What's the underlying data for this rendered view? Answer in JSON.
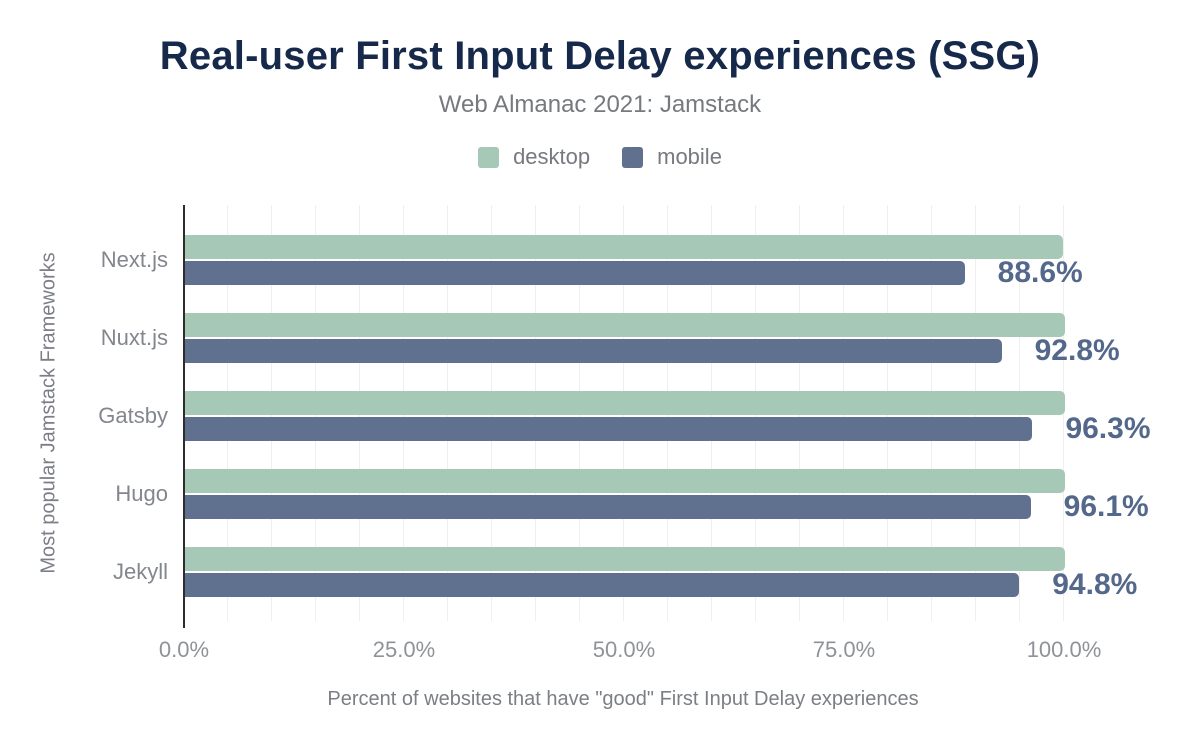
{
  "header": {
    "title": "Real-user First Input Delay experiences (SSG)",
    "subtitle": "Web Almanac 2021: Jamstack"
  },
  "legend": [
    {
      "label": "desktop",
      "color": "#a6c9b7"
    },
    {
      "label": "mobile",
      "color": "#5f718e"
    }
  ],
  "colors": {
    "title": "#16294a",
    "subtitle": "#76797e",
    "axis_line": "#2d2d2d",
    "gridline": "#efefef",
    "tick_label": "#8f9398",
    "category_label": "#83878d",
    "data_label": "#54688c",
    "desktop_bar": "#a6c9b7",
    "mobile_bar": "#5f718e"
  },
  "chart_data": {
    "type": "bar",
    "orientation": "horizontal",
    "title": "Real-user First Input Delay experiences (SSG)",
    "subtitle": "Web Almanac 2021: Jamstack",
    "categories": [
      "Next.js",
      "Nuxt.js",
      "Gatsby",
      "Hugo",
      "Jekyll"
    ],
    "series": [
      {
        "name": "desktop",
        "color": "#a6c9b7",
        "values": [
          99.8,
          100.0,
          100.0,
          100.0,
          100.0
        ]
      },
      {
        "name": "mobile",
        "color": "#5f718e",
        "values": [
          88.6,
          92.8,
          96.3,
          96.1,
          94.8
        ]
      }
    ],
    "data_labels": [
      "88.6%",
      "92.8%",
      "96.3%",
      "96.1%",
      "94.8%"
    ],
    "labeled_series": "mobile",
    "xlabel": "Percent of websites that have \"good\" First Input Delay experiences",
    "ylabel": "Most popular Jamstack Frameworks",
    "x_ticks": [
      "0.0%",
      "25.0%",
      "50.0%",
      "75.0%",
      "100.0%"
    ],
    "x_tick_values": [
      0,
      25,
      50,
      75,
      100
    ],
    "xlim": [
      0,
      100
    ],
    "grid_step_percent": 5,
    "grid": true,
    "legend_position": "top"
  }
}
